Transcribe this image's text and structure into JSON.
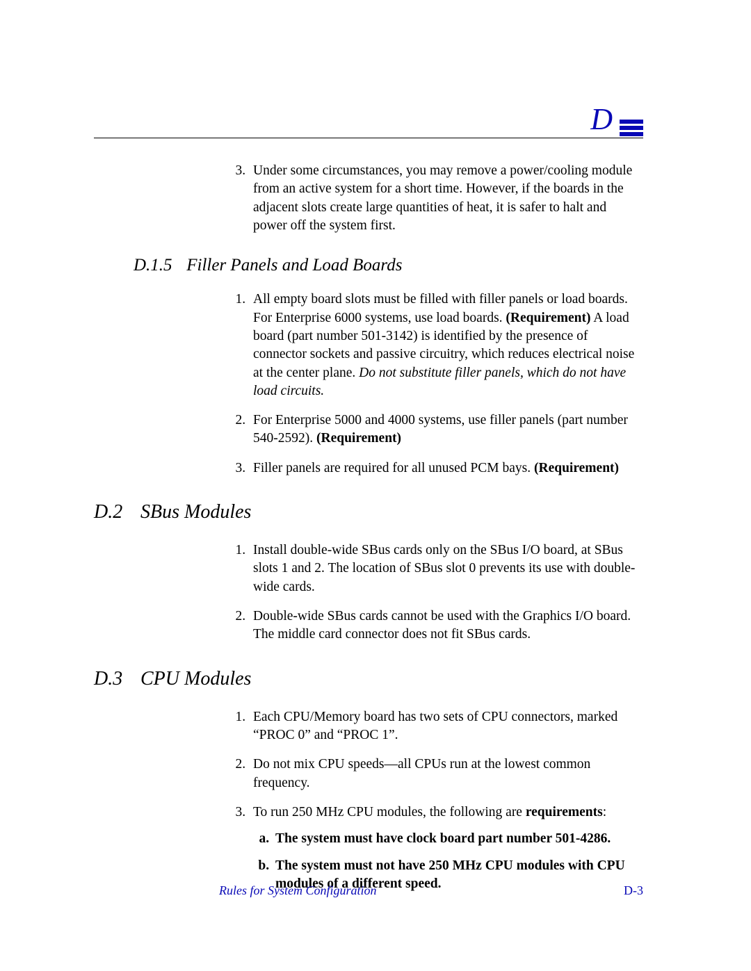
{
  "header": {
    "appendix_letter": "D",
    "rule_color": "#000000",
    "accent_color": "#0808b6"
  },
  "intro_continuation": {
    "start_number": 3,
    "items": [
      "Under some circumstances, you may remove a power/cooling module from an active system for a short time. However, if the boards in the adjacent slots create large quantities of heat, it is safer to halt and power off the system first."
    ]
  },
  "sec_d15": {
    "number": "D.1.5",
    "title": "Filler Panels and Load Boards",
    "items": [
      {
        "pre": "All empty board slots must be filled with filler panels or load boards. For Enterprise 6000 systems, use load boards. ",
        "bold1": "(Requirement)",
        "mid": " A load board (part number 501-3142) is identified by the presence of connector sockets and passive circuitry, which reduces electrical noise at the center plane. ",
        "ital": "Do not substitute filler panels, which do not have load circuits."
      },
      {
        "pre": "For Enterprise 5000 and 4000 systems, use filler panels (part number 540-2592). ",
        "bold1": "(Requirement)"
      },
      {
        "pre": "Filler panels are required for all unused PCM bays. ",
        "bold1": "(Requirement)"
      }
    ]
  },
  "sec_d2": {
    "number": "D.2",
    "title": "SBus Modules",
    "items": [
      "Install double-wide SBus cards only on the SBus I/O board, at SBus slots 1 and 2. The location of SBus slot 0 prevents its use with double-wide cards.",
      "Double-wide SBus cards cannot be used with the Graphics I/O board. The middle card connector does not fit SBus cards."
    ]
  },
  "sec_d3": {
    "number": "D.3",
    "title": "CPU Modules",
    "items": {
      "i1": "Each CPU/Memory board has two sets of CPU connectors, marked “PROC 0” and “PROC 1”.",
      "i2": "Do not mix CPU speeds—all CPUs run at the lowest common frequency.",
      "i3_pre": "To run 250 MHz CPU modules, the following are ",
      "i3_bold": "requirements",
      "i3_post": ":",
      "i3_sub": [
        "The system must have clock board part number 501-4286.",
        "The system must not have 250 MHz CPU modules with CPU modules of a different speed."
      ]
    }
  },
  "footer": {
    "title": "Rules for System Configuration",
    "page": "D-3"
  }
}
